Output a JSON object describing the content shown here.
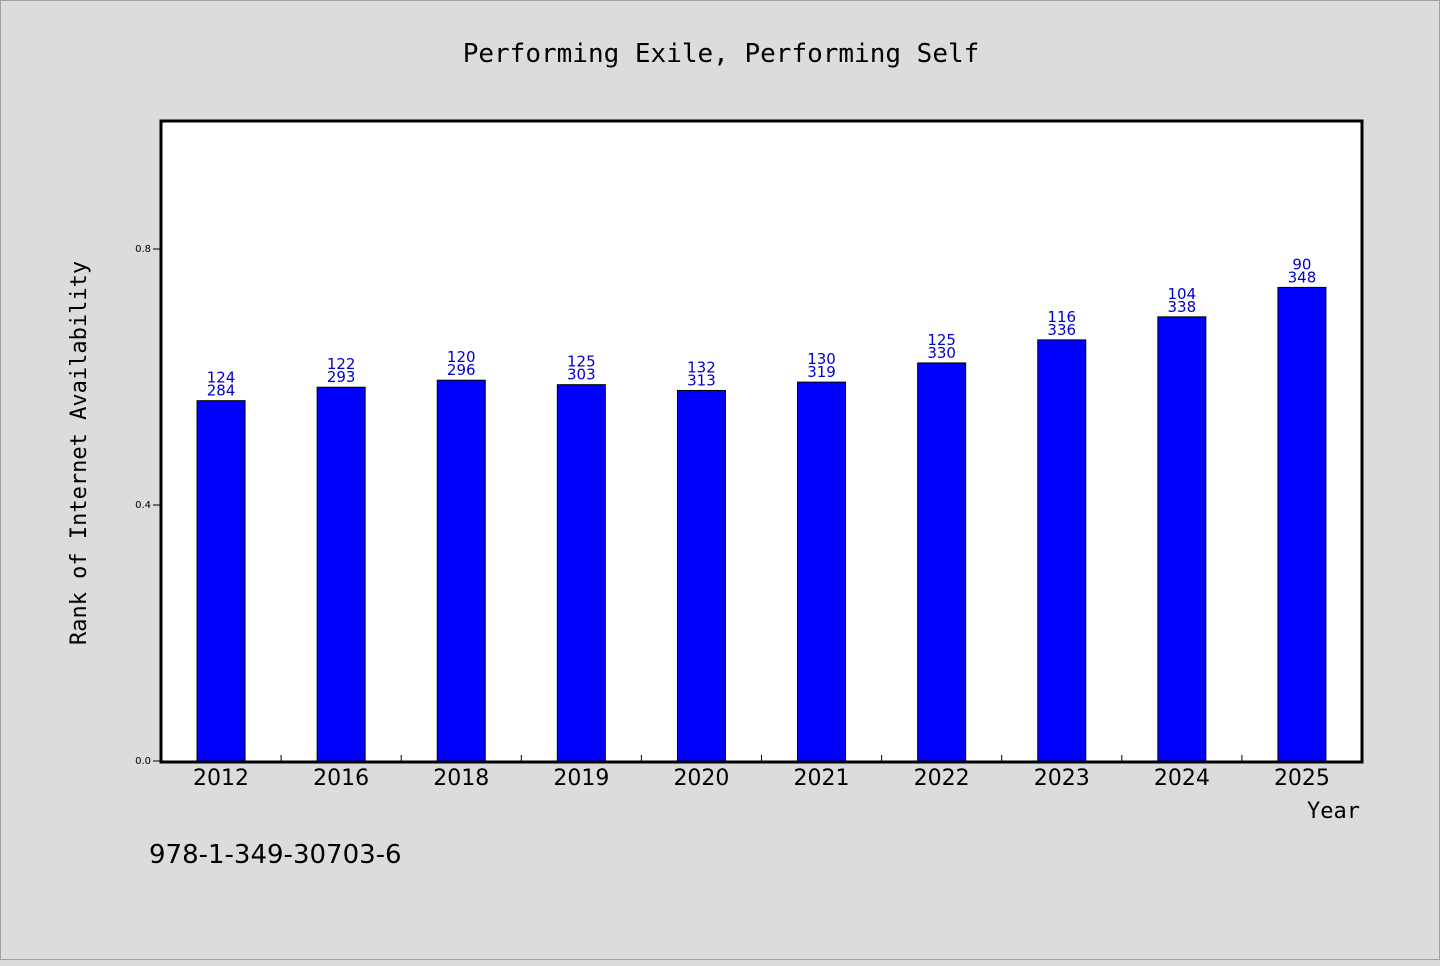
{
  "chart_data": {
    "type": "bar",
    "title": "Performing Exile, Performing Self",
    "xlabel": "Year",
    "ylabel": "Rank of Internet Availability",
    "categories": [
      "2012",
      "2016",
      "2018",
      "2019",
      "2020",
      "2021",
      "2022",
      "2023",
      "2024",
      "2025"
    ],
    "values": [
      0.563,
      0.584,
      0.595,
      0.588,
      0.579,
      0.592,
      0.622,
      0.658,
      0.694,
      0.74
    ],
    "labels_top": [
      "124",
      "122",
      "120",
      "125",
      "132",
      "130",
      "125",
      "116",
      "104",
      "90"
    ],
    "labels_bottom": [
      "284",
      "293",
      "296",
      "303",
      "313",
      "319",
      "330",
      "336",
      "338",
      "348"
    ],
    "yticks": [
      "0.0",
      "0.4",
      "0.8"
    ],
    "ylim": [
      0,
      1.0
    ],
    "grid": false,
    "bar_color": "#0000ff",
    "label_color": "#0000cc"
  },
  "footer_text": "978-1-349-30703-6"
}
